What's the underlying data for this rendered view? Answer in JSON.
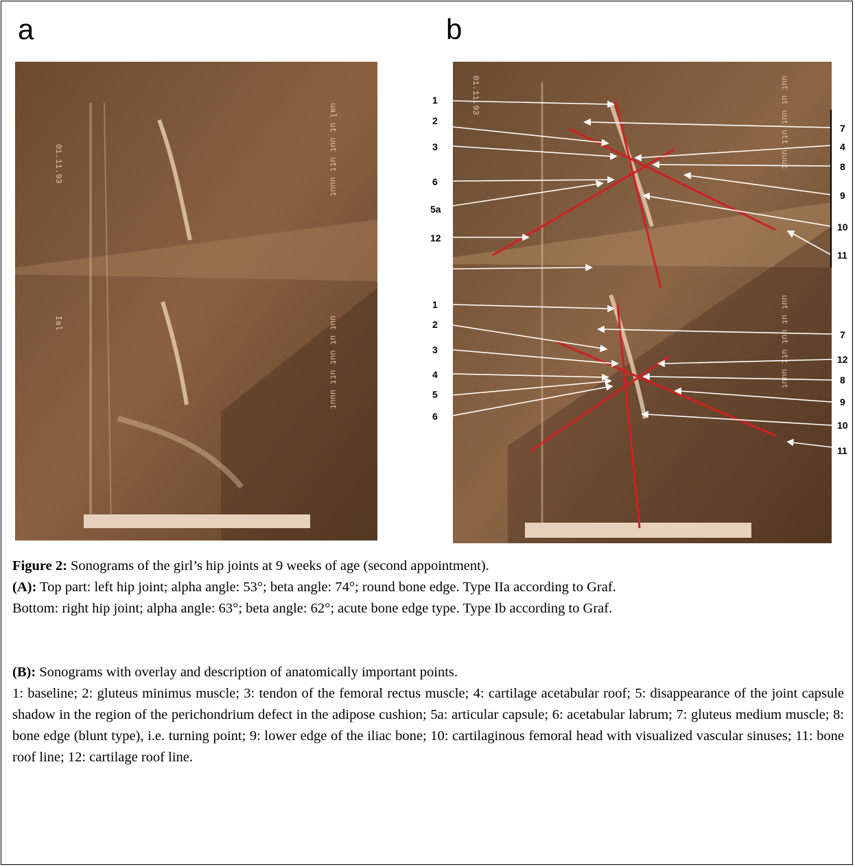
{
  "panels": {
    "a": "a",
    "b": "b"
  },
  "labels_b": {
    "top_left": [
      "1",
      "2",
      "3",
      "6",
      "5a",
      "12"
    ],
    "top_right": [
      "7",
      "4",
      "8",
      "9",
      "10",
      "11"
    ],
    "bottom_left": [
      "1",
      "2",
      "3",
      "4",
      "5",
      "6"
    ],
    "bottom_right": [
      "7",
      "12",
      "8",
      "9",
      "10",
      "11"
    ]
  },
  "caption": {
    "title_bold": "Figure 2:",
    "title_text": " Sonograms of the girl’s hip joints at 9 weeks of age (second appointment).",
    "a_bold": "(A):",
    "a_line1": " Top part: left hip joint; alpha angle: 53°; beta angle: 74°; round bone edge. Type IIa according to Graf.",
    "a_line2": "Bottom: right hip joint; alpha angle: 63°; beta angle: 62°; acute bone edge type. Type Ib according to Graf.",
    "b_bold": "(B):",
    "b_line1": " Sonograms with overlay and description of anatomically important points.",
    "b_legend": "1: baseline; 2: gluteus minimus muscle; 3: tendon of the femoral rectus muscle; 4: cartilage acetabular roof; 5: disappearance of the joint capsule shadow in the region of the perichondrium defect in the adipose cushion; 5a: articular capsule; 6: acetabular labrum; 7: gluteus medium muscle; 8: bone edge (blunt type), i.e. turning point; 9: lower edge of the iliac bone; 10: cartilaginous femoral head with visualized vascular sinuses; 11: bone roof line; 12: cartilage roof line."
  },
  "colors": {
    "sono_dark": "#5a3a22",
    "sono_mid": "#8a6040",
    "sono_light": "#b08860",
    "overlay_red": "#d02020"
  }
}
